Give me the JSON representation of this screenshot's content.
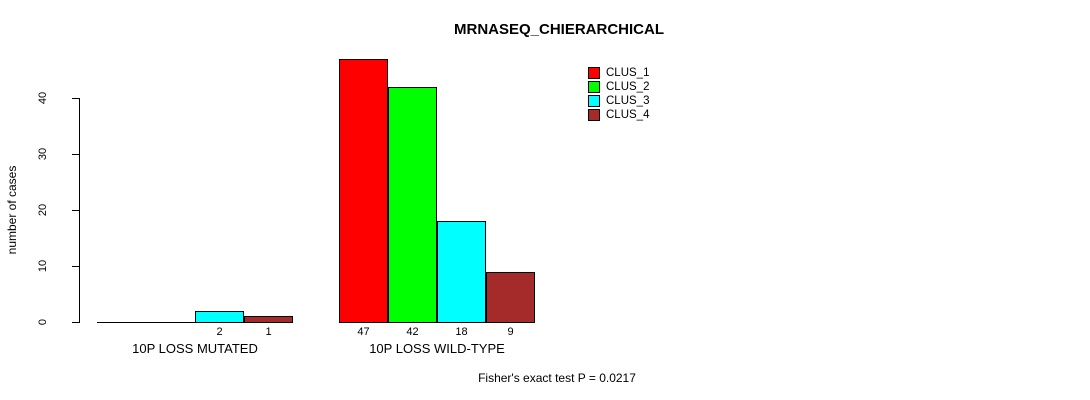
{
  "page": {
    "background": "#ffffff",
    "text_color": "#000000"
  },
  "chart_data": {
    "type": "bar",
    "title": "MRNASEQ_CHIERARCHICAL",
    "xlabel": "",
    "ylabel": "number of cases",
    "footnote": "Fisher's exact test P = 0.0217",
    "ylim": [
      0,
      47
    ],
    "yticks": [
      0,
      10,
      20,
      30,
      40
    ],
    "grid": false,
    "legend_position": "top-right",
    "categories": [
      "10P LOSS MUTATED",
      "10P LOSS WILD-TYPE"
    ],
    "series": [
      {
        "name": "CLUS_1",
        "color": "#FF0000",
        "values": [
          0,
          47
        ]
      },
      {
        "name": "CLUS_2",
        "color": "#00FF00",
        "values": [
          0,
          42
        ]
      },
      {
        "name": "CLUS_3",
        "color": "#00FFFF",
        "values": [
          2,
          18
        ]
      },
      {
        "name": "CLUS_4",
        "color": "#A52A2A",
        "values": [
          1,
          9
        ]
      }
    ],
    "bar_value_labels": [
      [
        "",
        "",
        "2",
        "1"
      ],
      [
        "47",
        "42",
        "18",
        "9"
      ]
    ]
  }
}
